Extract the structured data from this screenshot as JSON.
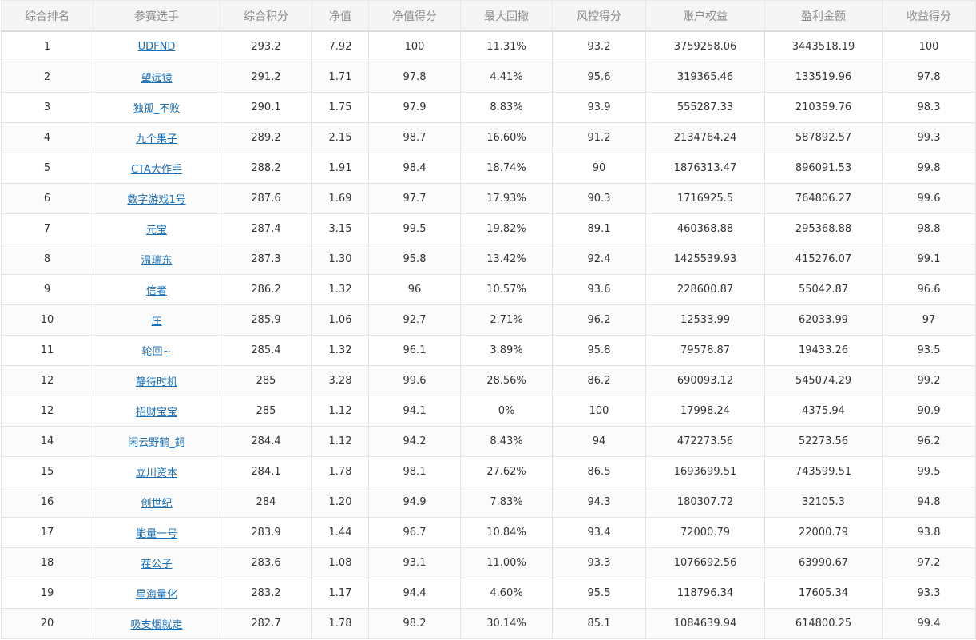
{
  "table": {
    "headers": [
      "综合排名",
      "参赛选手",
      "综合积分",
      "净值",
      "净值得分",
      "最大回撤",
      "风控得分",
      "账户权益",
      "盈利金额",
      "收益得分"
    ],
    "rows": [
      {
        "rank": "1",
        "player": "UDFND",
        "score": "293.2",
        "nav": "7.92",
        "nav_score": "100",
        "max_drawdown": "11.31%",
        "risk_score": "93.2",
        "equity": "3759258.06",
        "profit": "3443518.19",
        "return_score": "100"
      },
      {
        "rank": "2",
        "player": "望远镜",
        "score": "291.2",
        "nav": "1.71",
        "nav_score": "97.8",
        "max_drawdown": "4.41%",
        "risk_score": "95.6",
        "equity": "319365.46",
        "profit": "133519.96",
        "return_score": "97.8"
      },
      {
        "rank": "3",
        "player": "独孤_不败",
        "score": "290.1",
        "nav": "1.75",
        "nav_score": "97.9",
        "max_drawdown": "8.83%",
        "risk_score": "93.9",
        "equity": "555287.33",
        "profit": "210359.76",
        "return_score": "98.3"
      },
      {
        "rank": "4",
        "player": "九个果子",
        "score": "289.2",
        "nav": "2.15",
        "nav_score": "98.7",
        "max_drawdown": "16.60%",
        "risk_score": "91.2",
        "equity": "2134764.24",
        "profit": "587892.57",
        "return_score": "99.3"
      },
      {
        "rank": "5",
        "player": "CTA大作手",
        "score": "288.2",
        "nav": "1.91",
        "nav_score": "98.4",
        "max_drawdown": "18.74%",
        "risk_score": "90",
        "equity": "1876313.47",
        "profit": "896091.53",
        "return_score": "99.8"
      },
      {
        "rank": "6",
        "player": "数字游戏1号",
        "score": "287.6",
        "nav": "1.69",
        "nav_score": "97.7",
        "max_drawdown": "17.93%",
        "risk_score": "90.3",
        "equity": "1716925.5",
        "profit": "764806.27",
        "return_score": "99.6"
      },
      {
        "rank": "7",
        "player": "元宝",
        "score": "287.4",
        "nav": "3.15",
        "nav_score": "99.5",
        "max_drawdown": "19.82%",
        "risk_score": "89.1",
        "equity": "460368.88",
        "profit": "295368.88",
        "return_score": "98.8"
      },
      {
        "rank": "8",
        "player": "温瑞东",
        "score": "287.3",
        "nav": "1.30",
        "nav_score": "95.8",
        "max_drawdown": "13.42%",
        "risk_score": "92.4",
        "equity": "1425539.93",
        "profit": "415276.07",
        "return_score": "99.1"
      },
      {
        "rank": "9",
        "player": "信者",
        "score": "286.2",
        "nav": "1.32",
        "nav_score": "96",
        "max_drawdown": "10.57%",
        "risk_score": "93.6",
        "equity": "228600.87",
        "profit": "55042.87",
        "return_score": "96.6"
      },
      {
        "rank": "10",
        "player": "庄",
        "score": "285.9",
        "nav": "1.06",
        "nav_score": "92.7",
        "max_drawdown": "2.71%",
        "risk_score": "96.2",
        "equity": "12533.99",
        "profit": "62033.99",
        "return_score": "97"
      },
      {
        "rank": "11",
        "player": "轮回~",
        "score": "285.4",
        "nav": "1.32",
        "nav_score": "96.1",
        "max_drawdown": "3.89%",
        "risk_score": "95.8",
        "equity": "79578.87",
        "profit": "19433.26",
        "return_score": "93.5"
      },
      {
        "rank": "12",
        "player": "静待时机",
        "score": "285",
        "nav": "3.28",
        "nav_score": "99.6",
        "max_drawdown": "28.56%",
        "risk_score": "86.2",
        "equity": "690093.12",
        "profit": "545074.29",
        "return_score": "99.2"
      },
      {
        "rank": "12",
        "player": "招财宝宝",
        "score": "285",
        "nav": "1.12",
        "nav_score": "94.1",
        "max_drawdown": "0%",
        "risk_score": "100",
        "equity": "17998.24",
        "profit": "4375.94",
        "return_score": "90.9"
      },
      {
        "rank": "14",
        "player": "闲云野鹤_鈳",
        "score": "284.4",
        "nav": "1.12",
        "nav_score": "94.2",
        "max_drawdown": "8.43%",
        "risk_score": "94",
        "equity": "472273.56",
        "profit": "52273.56",
        "return_score": "96.2"
      },
      {
        "rank": "15",
        "player": "立川资本",
        "score": "284.1",
        "nav": "1.78",
        "nav_score": "98.1",
        "max_drawdown": "27.62%",
        "risk_score": "86.5",
        "equity": "1693699.51",
        "profit": "743599.51",
        "return_score": "99.5"
      },
      {
        "rank": "16",
        "player": "创世纪",
        "score": "284",
        "nav": "1.20",
        "nav_score": "94.9",
        "max_drawdown": "7.83%",
        "risk_score": "94.3",
        "equity": "180307.72",
        "profit": "32105.3",
        "return_score": "94.8"
      },
      {
        "rank": "17",
        "player": "能量一号",
        "score": "283.9",
        "nav": "1.44",
        "nav_score": "96.7",
        "max_drawdown": "10.84%",
        "risk_score": "93.4",
        "equity": "72000.79",
        "profit": "22000.79",
        "return_score": "93.8"
      },
      {
        "rank": "18",
        "player": "茬公子",
        "score": "283.6",
        "nav": "1.08",
        "nav_score": "93.1",
        "max_drawdown": "11.00%",
        "risk_score": "93.3",
        "equity": "1076692.56",
        "profit": "63990.67",
        "return_score": "97.2"
      },
      {
        "rank": "19",
        "player": "星海量化",
        "score": "283.2",
        "nav": "1.17",
        "nav_score": "94.4",
        "max_drawdown": "4.60%",
        "risk_score": "95.5",
        "equity": "118796.34",
        "profit": "17605.34",
        "return_score": "93.3"
      },
      {
        "rank": "20",
        "player": "吸支烟就走",
        "score": "282.7",
        "nav": "1.78",
        "nav_score": "98.2",
        "max_drawdown": "30.14%",
        "risk_score": "85.1",
        "equity": "1084639.94",
        "profit": "614800.25",
        "return_score": "99.4"
      }
    ]
  },
  "colors": {
    "link": "#1a6fb5",
    "header_bg": "#f5f5f5",
    "border": "#e4e4e4"
  }
}
